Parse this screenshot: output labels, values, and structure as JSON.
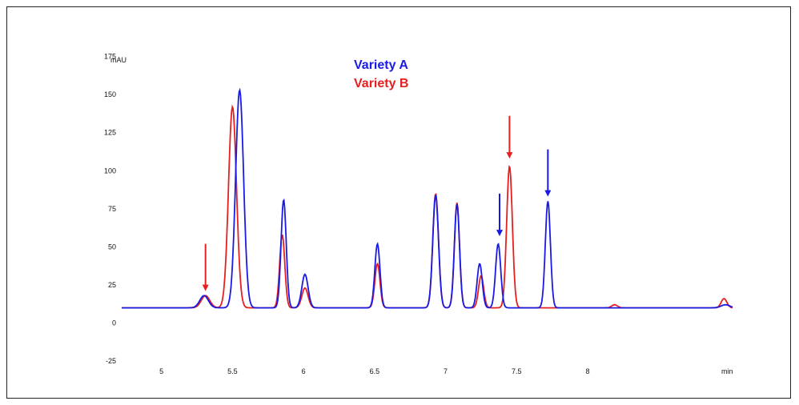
{
  "chart_data": {
    "type": "line",
    "ylabel": "mAU",
    "xlabel": "min",
    "xlim": [
      4.72,
      9.02
    ],
    "ylim": [
      -37,
      200
    ],
    "yticks": [
      -25,
      0,
      25,
      50,
      75,
      100,
      125,
      150,
      175
    ],
    "xticks": [
      5,
      5.5,
      6,
      6.5,
      7,
      7.5,
      8
    ],
    "baseline": 10,
    "series": [
      {
        "name": "Variety A",
        "color": "#1a1ae6",
        "peaks": [
          {
            "t": 5.3,
            "h": 8,
            "w": 0.03
          },
          {
            "t": 5.55,
            "h": 143,
            "w": 0.028
          },
          {
            "t": 5.86,
            "h": 71,
            "w": 0.018
          },
          {
            "t": 6.01,
            "h": 22,
            "w": 0.022
          },
          {
            "t": 6.52,
            "h": 42,
            "w": 0.018
          },
          {
            "t": 6.93,
            "h": 74,
            "w": 0.02
          },
          {
            "t": 7.08,
            "h": 68,
            "w": 0.018
          },
          {
            "t": 7.24,
            "h": 29,
            "w": 0.018
          },
          {
            "t": 7.37,
            "h": 42,
            "w": 0.018
          },
          {
            "t": 7.72,
            "h": 70,
            "w": 0.018
          },
          {
            "t": 8.97,
            "h": 2,
            "w": 0.03
          }
        ]
      },
      {
        "name": "Variety B",
        "color": "#e62020",
        "peaks": [
          {
            "t": 5.31,
            "h": 8,
            "w": 0.03
          },
          {
            "t": 5.5,
            "h": 132,
            "w": 0.028
          },
          {
            "t": 5.85,
            "h": 48,
            "w": 0.018
          },
          {
            "t": 6.01,
            "h": 13,
            "w": 0.022
          },
          {
            "t": 6.52,
            "h": 29,
            "w": 0.018
          },
          {
            "t": 6.93,
            "h": 75,
            "w": 0.02
          },
          {
            "t": 7.08,
            "h": 69,
            "w": 0.018
          },
          {
            "t": 7.25,
            "h": 21,
            "w": 0.018
          },
          {
            "t": 7.45,
            "h": 93,
            "w": 0.02
          },
          {
            "t": 8.19,
            "h": 2,
            "w": 0.02
          },
          {
            "t": 8.96,
            "h": 6,
            "w": 0.02
          }
        ]
      }
    ],
    "annotations": [
      {
        "type": "arrow",
        "color": "#e62020",
        "x": 5.31,
        "y_tip": 21,
        "y_tail": 52
      },
      {
        "type": "arrow",
        "color": "#e62020",
        "x": 7.45,
        "y_tip": 108,
        "y_tail": 136
      },
      {
        "type": "arrow",
        "color": "#1a1ae6",
        "x": 7.38,
        "y_tip": 57,
        "y_tail": 85
      },
      {
        "type": "arrow",
        "color": "#1a1ae6",
        "x": 7.72,
        "y_tip": 83,
        "y_tail": 114
      }
    ],
    "grid": false,
    "legend": "top-center"
  }
}
